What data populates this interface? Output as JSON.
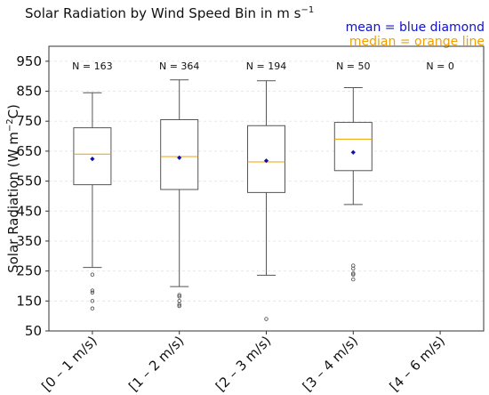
{
  "chart_data": {
    "type": "box",
    "title": "Solar Radiation by Wind Speed Bin in m s",
    "title_superscript": "−1",
    "ylabel": "Solar Radiation (W m",
    "ylabel_superscript": "−2",
    "ylabel_suffix": "C)",
    "xlabel": "",
    "legend": {
      "mean": "mean = blue diamond",
      "median": "median = orange line",
      "mean_color": "#1111cc",
      "median_color": "#f0a000"
    },
    "ylim": [
      50,
      1000
    ],
    "yticks": [
      50,
      150,
      250,
      350,
      450,
      550,
      650,
      750,
      850,
      950
    ],
    "grid": "horizontal dashed",
    "categories": [
      "[0 – 1 m/s)",
      "[1 – 2 m/s)",
      "[2 – 3 m/s)",
      "[3 – 4 m/s)",
      "[4 – 6 m/s)"
    ],
    "boxes": [
      {
        "n_label": "N = 163",
        "whislo": 262,
        "q1": 538,
        "median": 640,
        "q3": 728,
        "whishi": 845,
        "mean": 624,
        "fliers": [
          238,
          185,
          178,
          150,
          125
        ]
      },
      {
        "n_label": "N = 364",
        "whislo": 198,
        "q1": 522,
        "median": 632,
        "q3": 755,
        "whishi": 888,
        "mean": 628,
        "fliers": [
          170,
          165,
          150,
          138,
          133
        ]
      },
      {
        "n_label": "N = 194",
        "whislo": 236,
        "q1": 512,
        "median": 614,
        "q3": 735,
        "whishi": 885,
        "mean": 618,
        "fliers": [
          90
        ]
      },
      {
        "n_label": "N = 50",
        "whislo": 472,
        "q1": 585,
        "median": 690,
        "q3": 746,
        "whishi": 862,
        "mean": 646,
        "fliers": [
          268,
          258,
          242,
          238,
          222
        ]
      },
      {
        "n_label": "N = 0",
        "whislo": null,
        "q1": null,
        "median": null,
        "q3": null,
        "whishi": null,
        "mean": null,
        "fliers": []
      }
    ],
    "colors": {
      "box_edge": "#555555",
      "median": "#f0a000",
      "mean": "#1111aa",
      "grid": "#e8e8e8",
      "flier": "#444444"
    }
  }
}
